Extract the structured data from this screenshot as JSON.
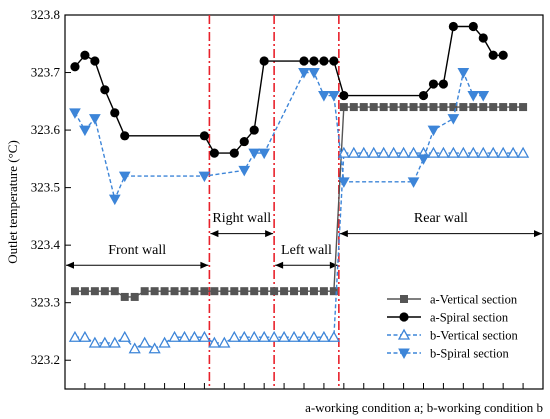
{
  "chart_data": {
    "type": "line",
    "xlabel": "",
    "ylabel": "Outlet temperature (°C)",
    "ylim": [
      323.15,
      323.8
    ],
    "xlim": [
      0,
      48
    ],
    "yticks": [
      323.2,
      323.3,
      323.4,
      323.5,
      323.6,
      323.7,
      323.8
    ],
    "xticks": [
      2,
      4,
      6,
      8,
      10,
      12,
      14,
      16,
      18,
      20,
      22,
      24,
      26,
      28,
      30,
      32,
      34,
      36,
      38,
      40,
      42,
      44,
      46
    ],
    "grid": false,
    "legend_position": "bottom-right",
    "footnote": "a-working condition a; b-working condition b",
    "dividers": [
      14.5,
      21,
      27.5
    ],
    "regions": [
      {
        "label": "Front wall",
        "from": 0,
        "to": 14.5,
        "y": 323.365,
        "label_y": 323.385
      },
      {
        "label": "Right wall",
        "from": 14.5,
        "to": 21,
        "y": 323.42,
        "label_y": 323.44
      },
      {
        "label": "Left wall",
        "from": 21,
        "to": 27.5,
        "y": 323.365,
        "label_y": 323.385
      },
      {
        "label": "Rear wall",
        "from": 27.5,
        "to": 48,
        "y": 323.42,
        "label_y": 323.44
      }
    ],
    "series": [
      {
        "name": "a-Vertical section",
        "color": "#555555",
        "dash": false,
        "marker": "square",
        "points": [
          [
            1,
            323.32
          ],
          [
            2,
            323.32
          ],
          [
            3,
            323.32
          ],
          [
            4,
            323.32
          ],
          [
            5,
            323.32
          ],
          [
            6,
            323.31
          ],
          [
            7,
            323.31
          ],
          [
            8,
            323.32
          ],
          [
            9,
            323.32
          ],
          [
            10,
            323.32
          ],
          [
            11,
            323.32
          ],
          [
            12,
            323.32
          ],
          [
            13,
            323.32
          ],
          [
            14,
            323.32
          ],
          [
            15,
            323.32
          ],
          [
            16,
            323.32
          ],
          [
            17,
            323.32
          ],
          [
            18,
            323.32
          ],
          [
            19,
            323.32
          ],
          [
            20,
            323.32
          ],
          [
            21,
            323.32
          ],
          [
            22,
            323.32
          ],
          [
            23,
            323.32
          ],
          [
            24,
            323.32
          ],
          [
            25,
            323.32
          ],
          [
            26,
            323.32
          ],
          [
            27,
            323.32
          ],
          [
            28,
            323.64
          ],
          [
            29,
            323.64
          ],
          [
            30,
            323.64
          ],
          [
            31,
            323.64
          ],
          [
            32,
            323.64
          ],
          [
            33,
            323.64
          ],
          [
            34,
            323.64
          ],
          [
            35,
            323.64
          ],
          [
            36,
            323.64
          ],
          [
            37,
            323.64
          ],
          [
            38,
            323.64
          ],
          [
            39,
            323.64
          ],
          [
            40,
            323.64
          ],
          [
            41,
            323.64
          ],
          [
            42,
            323.64
          ],
          [
            43,
            323.64
          ],
          [
            44,
            323.64
          ],
          [
            45,
            323.64
          ],
          [
            46,
            323.64
          ]
        ]
      },
      {
        "name": "a-Spiral section",
        "color": "#000000",
        "dash": false,
        "marker": "circle",
        "points": [
          [
            1,
            323.71
          ],
          [
            2,
            323.73
          ],
          [
            3,
            323.72
          ],
          [
            4,
            323.67
          ],
          [
            5,
            323.63
          ],
          [
            6,
            323.59
          ],
          [
            14,
            323.59
          ],
          [
            15,
            323.56
          ],
          [
            17,
            323.56
          ],
          [
            18,
            323.58
          ],
          [
            19,
            323.6
          ],
          [
            20,
            323.72
          ],
          [
            24,
            323.72
          ],
          [
            25,
            323.72
          ],
          [
            26,
            323.72
          ],
          [
            27,
            323.72
          ],
          [
            28,
            323.66
          ],
          [
            36,
            323.66
          ],
          [
            37,
            323.68
          ],
          [
            38,
            323.68
          ],
          [
            39,
            323.78
          ],
          [
            41,
            323.78
          ],
          [
            42,
            323.76
          ],
          [
            43,
            323.73
          ],
          [
            44,
            323.73
          ]
        ]
      },
      {
        "name": "b-Vertical section",
        "color": "#3d85d8",
        "dash": true,
        "marker": "triangle-up",
        "points": [
          [
            1,
            323.24
          ],
          [
            2,
            323.24
          ],
          [
            3,
            323.23
          ],
          [
            4,
            323.23
          ],
          [
            5,
            323.23
          ],
          [
            6,
            323.24
          ],
          [
            7,
            323.22
          ],
          [
            8,
            323.23
          ],
          [
            9,
            323.22
          ],
          [
            10,
            323.23
          ],
          [
            11,
            323.24
          ],
          [
            12,
            323.24
          ],
          [
            13,
            323.24
          ],
          [
            14,
            323.24
          ],
          [
            15,
            323.23
          ],
          [
            16,
            323.23
          ],
          [
            17,
            323.24
          ],
          [
            18,
            323.24
          ],
          [
            19,
            323.24
          ],
          [
            20,
            323.24
          ],
          [
            21,
            323.24
          ],
          [
            22,
            323.24
          ],
          [
            23,
            323.24
          ],
          [
            24,
            323.24
          ],
          [
            25,
            323.24
          ],
          [
            26,
            323.24
          ],
          [
            27,
            323.24
          ],
          [
            28,
            323.56
          ],
          [
            29,
            323.56
          ],
          [
            30,
            323.56
          ],
          [
            31,
            323.56
          ],
          [
            32,
            323.56
          ],
          [
            33,
            323.56
          ],
          [
            34,
            323.56
          ],
          [
            35,
            323.56
          ],
          [
            36,
            323.56
          ],
          [
            37,
            323.56
          ],
          [
            38,
            323.56
          ],
          [
            39,
            323.56
          ],
          [
            40,
            323.56
          ],
          [
            41,
            323.56
          ],
          [
            42,
            323.56
          ],
          [
            43,
            323.56
          ],
          [
            44,
            323.56
          ],
          [
            45,
            323.56
          ],
          [
            46,
            323.56
          ]
        ]
      },
      {
        "name": "b-Spiral section",
        "color": "#3d85d8",
        "dash": true,
        "marker": "triangle-down",
        "points": [
          [
            1,
            323.63
          ],
          [
            2,
            323.6
          ],
          [
            3,
            323.62
          ],
          [
            5,
            323.48
          ],
          [
            6,
            323.52
          ],
          [
            14,
            323.52
          ],
          [
            18,
            323.53
          ],
          [
            19,
            323.56
          ],
          [
            20,
            323.56
          ],
          [
            24,
            323.7
          ],
          [
            25,
            323.7
          ],
          [
            26,
            323.66
          ],
          [
            27,
            323.66
          ],
          [
            28,
            323.51
          ],
          [
            35,
            323.51
          ],
          [
            36,
            323.55
          ],
          [
            37,
            323.6
          ],
          [
            39,
            323.62
          ],
          [
            40,
            323.7
          ],
          [
            41,
            323.66
          ],
          [
            42,
            323.66
          ]
        ]
      }
    ]
  }
}
